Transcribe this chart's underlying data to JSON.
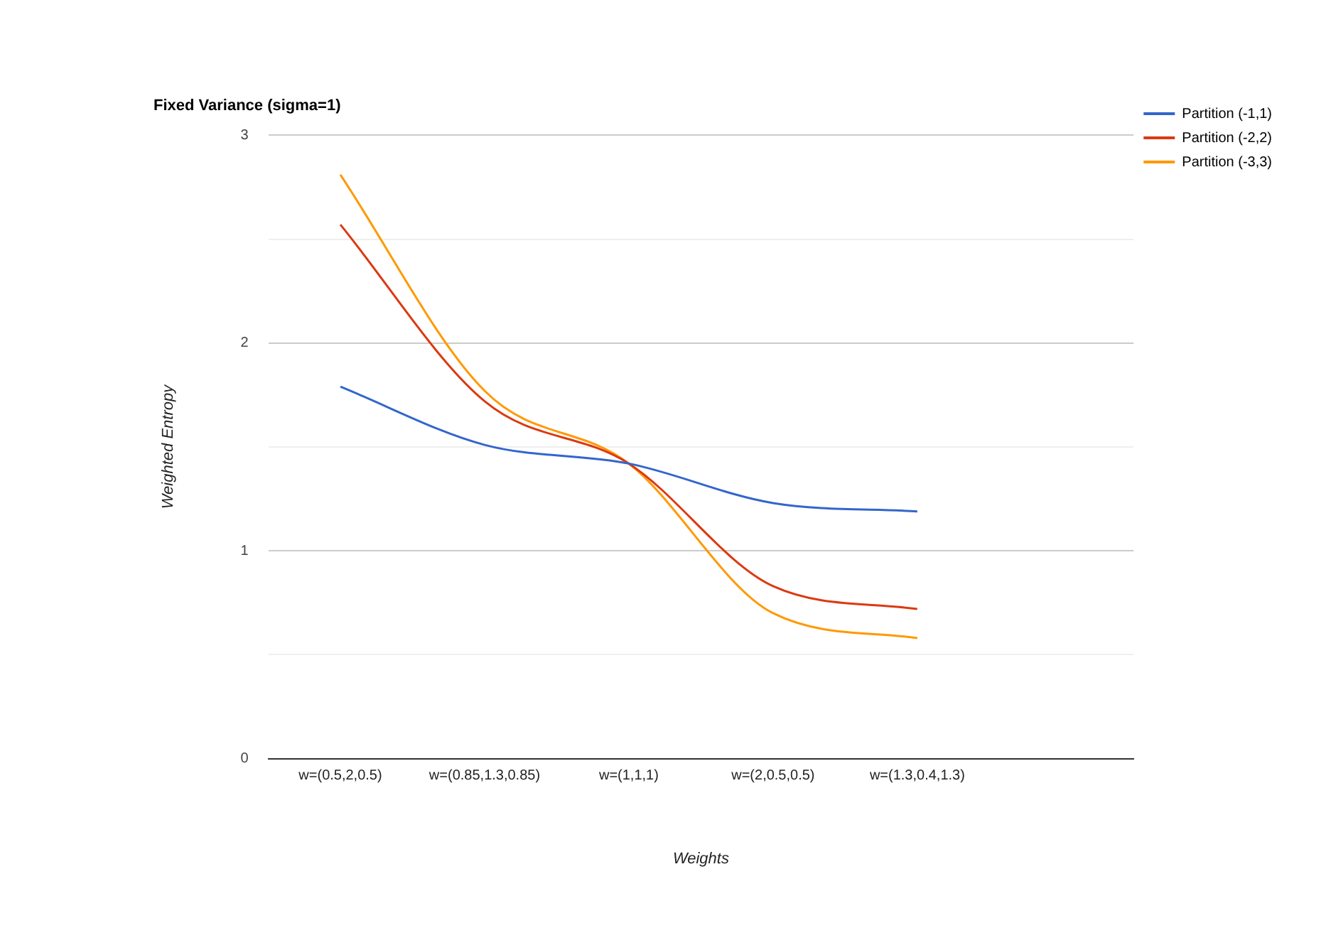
{
  "chart_data": {
    "type": "line",
    "title": "Fixed Variance (sigma=1)",
    "xlabel": "Weights",
    "ylabel": "Weighted Entropy",
    "categories": [
      "w=(0.5,2,0.5)",
      "w=(0.85,1.3,0.85)",
      "w=(1,1,1)",
      "w=(2,0.5,0.5)",
      "w=(1.3,0.4,1.3)",
      null
    ],
    "series": [
      {
        "name": "Partition (-1,1)",
        "color": "#3366cc",
        "values": [
          1.79,
          1.51,
          1.42,
          1.23,
          1.19,
          null
        ]
      },
      {
        "name": "Partition (-2,2)",
        "color": "#dc3912",
        "values": [
          2.57,
          1.72,
          1.42,
          0.83,
          0.72,
          null
        ]
      },
      {
        "name": "Partition (-3,3)",
        "color": "#ff9900",
        "values": [
          2.81,
          1.77,
          1.42,
          0.7,
          0.58,
          null
        ]
      }
    ],
    "ylim": [
      0,
      3
    ],
    "yticks": [
      0,
      {
        "value": 0.5,
        "label": null
      },
      1,
      {
        "value": 1.5,
        "label": null
      },
      2,
      {
        "value": 2.5,
        "label": null
      },
      3
    ],
    "grid": "y",
    "legend": "top right",
    "marker": "none",
    "line_style": "solid"
  }
}
